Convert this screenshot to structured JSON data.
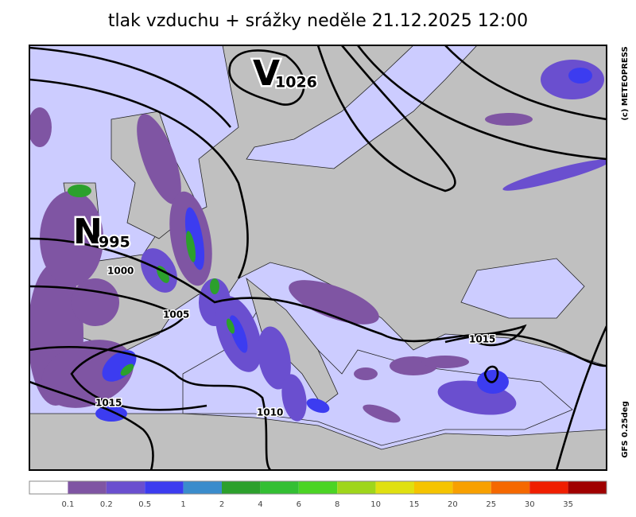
{
  "title": "tlak vzduchu + srážky  neděle 21.12.2025 12:00",
  "pressure_centers": [
    {
      "letter": "V",
      "value": "1026"
    },
    {
      "letter": "N",
      "value": "995"
    }
  ],
  "isobar_labels": [
    "1000",
    "1005",
    "1015",
    "1015",
    "1010"
  ],
  "credit": "(c) METEOPRESS",
  "model": "GFS 0.25deg",
  "legend": {
    "colors": [
      "#ffffff",
      "#7f55a3",
      "#6a4fcf",
      "#3c3cf0",
      "#3a8ccc",
      "#2ca02c",
      "#33bf33",
      "#4bd424",
      "#9fd61a",
      "#e0e010",
      "#f5c400",
      "#f8a000",
      "#f56800",
      "#f01e00",
      "#a00000"
    ],
    "ticks": [
      "0.1",
      "0.2",
      "0.5",
      "1",
      "2",
      "4",
      "6",
      "8",
      "10",
      "15",
      "20",
      "25",
      "30",
      "35"
    ]
  }
}
